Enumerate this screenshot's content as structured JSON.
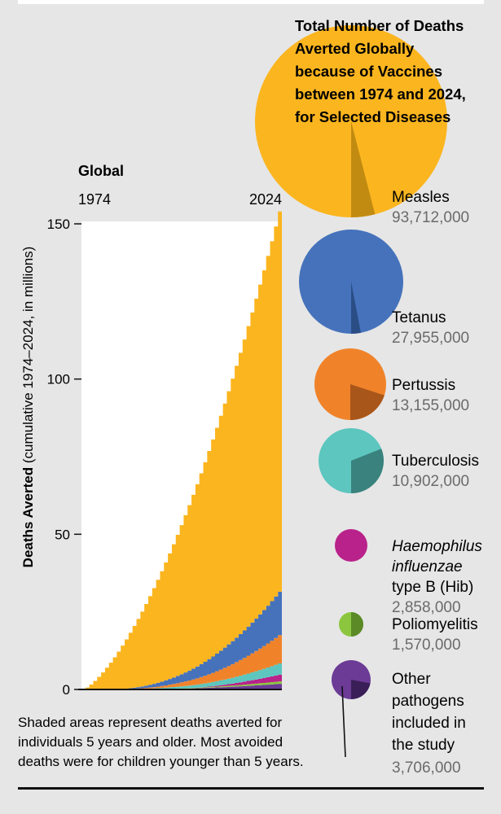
{
  "chart_data": [
    {
      "type": "area",
      "title": "Global",
      "x_start_label": "1974",
      "x_end_label": "2024",
      "x_range": [
        1974,
        2024
      ],
      "ylabel_bold": "Deaths Averted",
      "ylabel_rest": " (cumulative 1974–2024, in millions)",
      "ylim": [
        0,
        150
      ],
      "yticks": [
        0,
        50,
        100,
        150
      ],
      "grid": false,
      "stack_order_bottom_to_top": [
        "Other pathogens",
        "Poliomyelitis",
        "Hib",
        "Tuberculosis",
        "Pertussis",
        "Tetanus",
        "Measles"
      ],
      "series": [
        {
          "key": "other",
          "final_cumulative_millions": 1.8
        },
        {
          "key": "polio",
          "final_cumulative_millions": 0.8
        },
        {
          "key": "hib",
          "final_cumulative_millions": 2.2
        },
        {
          "key": "tb",
          "final_cumulative_millions": 3.6
        },
        {
          "key": "pertussis",
          "final_cumulative_millions": 9.1
        },
        {
          "key": "tetanus",
          "final_cumulative_millions": 14.0
        },
        {
          "key": "measles",
          "final_cumulative_millions": 122.5
        }
      ],
      "note": "Shaded areas represent deaths averted for individuals 5 years and older. Most avoided deaths were for children younger than 5 years."
    },
    {
      "type": "pie",
      "title": "Total Number of Deaths Averted Globally because of Vaccines between 1974 and 2024, for Selected Diseases",
      "items": [
        {
          "key": "measles",
          "label": "Measles",
          "value_text": "93,712,000",
          "value": 93712000,
          "share_5plus": 0.04,
          "color": "#fbb51f",
          "dark": "#c18b12"
        },
        {
          "key": "tetanus",
          "label": "Tetanus",
          "value_text": "27,955,000",
          "value": 27955000,
          "share_5plus": 0.03,
          "color": "#4572bb",
          "dark": "#2a4d85"
        },
        {
          "key": "pertussis",
          "label": "Pertussis",
          "value_text": "13,155,000",
          "value": 13155000,
          "share_5plus": 0.2,
          "color": "#f0832a",
          "dark": "#a9561a"
        },
        {
          "key": "tb",
          "label": "Tuberculosis",
          "value_text": "10,902,000",
          "value": 10902000,
          "share_5plus": 0.31,
          "color": "#5cc6bf",
          "dark": "#3a827e"
        },
        {
          "key": "hib",
          "label_italic": "Haemophilus influenzae",
          "label": "type B (Hib)",
          "value_text": "2,858,000",
          "value": 2858000,
          "share_5plus": 0.0,
          "color": "#b8228a",
          "dark": "#7f1560"
        },
        {
          "key": "polio",
          "label": "Poliomyelitis",
          "value_text": "1,570,000",
          "value": 1570000,
          "share_5plus": 0.5,
          "color": "#8cc63f",
          "dark": "#5b8a26"
        },
        {
          "key": "other",
          "label": "Other pathogens included in the study",
          "value_text": "3,706,000",
          "value": 3706000,
          "share_5plus": 0.22,
          "color": "#6b3b96",
          "dark": "#3a1e57"
        }
      ]
    }
  ]
}
